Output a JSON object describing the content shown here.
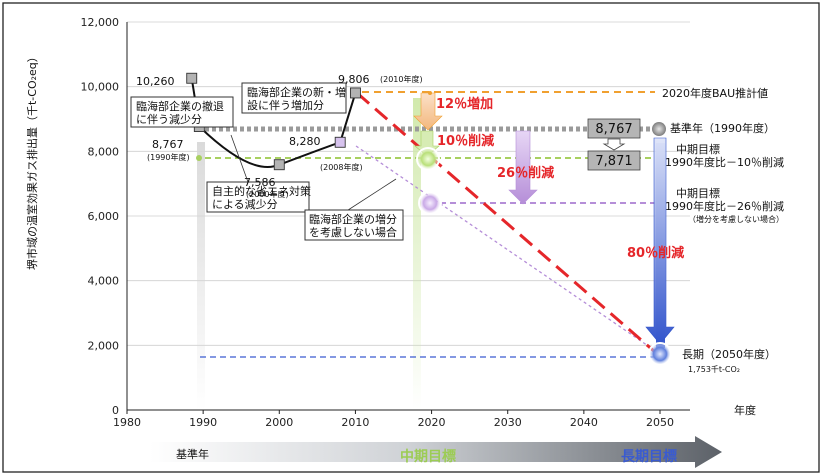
{
  "chart_data": {
    "type": "line",
    "ylabel": "堺市域の温室効果ガス排出量（千t-CO₂eq）",
    "xlabel": "年度",
    "xlim": [
      1980,
      2050
    ],
    "ylim": [
      0,
      12000
    ],
    "xticks": [
      "1980",
      "1990",
      "2000",
      "2010",
      "2020",
      "2030",
      "2040",
      "2050"
    ],
    "yticks": [
      "0",
      "2,000",
      "4,000",
      "6,000",
      "8,000",
      "10,000",
      "12,000"
    ],
    "series": [
      {
        "x": [
          1988.5,
          1989.5,
          2000,
          2008,
          2010
        ],
        "y": [
          10260,
          8767,
          7586,
          8280,
          9806
        ]
      }
    ],
    "point_labels": [
      {
        "text": "10,260",
        "x": 1988.5,
        "y": 10260
      },
      {
        "text": "8,767",
        "x": 1989.5,
        "y": 8767
      },
      {
        "text": "(1990年度)",
        "x": 1989.5,
        "y": 8767
      },
      {
        "text": "7,586",
        "x": 2000,
        "y": 7586
      },
      {
        "text": "(2000年度)",
        "x": 2000,
        "y": 7586
      },
      {
        "text": "8,280",
        "x": 2008,
        "y": 8280
      },
      {
        "text": "(2008年度)",
        "x": 2008,
        "y": 8280
      },
      {
        "text": "9,806",
        "x": 2010,
        "y": 9806
      },
      {
        "text": "(2010年度)",
        "x": 2010,
        "y": 9806
      }
    ],
    "reference_lines": [
      {
        "y": 9806,
        "label": "2020年度BAU推計値",
        "color": "#f0a030"
      },
      {
        "y": 8767,
        "label": "基準年（1990年度）",
        "color": "#999999"
      },
      {
        "y": 7871,
        "label_lines": [
          "中期目標",
          "1990年度比－10％削減"
        ],
        "color": "#a8d060"
      },
      {
        "y": 6400,
        "label_lines": [
          "中期目標",
          "1990年度比－26％削減"
        ],
        "note": "（増分を考慮しない場合）",
        "color": "#b58ed8"
      },
      {
        "y": 1753,
        "label_lines": [
          "長期（2050年度）",
          "1,753千t-CO₂"
        ],
        "color": "#3a5bd0"
      }
    ],
    "milestones": [
      {
        "x": 2020,
        "y": 7871
      },
      {
        "x": 2020,
        "y": 6400
      },
      {
        "x": 2050,
        "y": 1753
      }
    ],
    "annotations": [
      {
        "text": "12％増加",
        "color": "#e5262a"
      },
      {
        "text": "10％削減",
        "color": "#e5262a"
      },
      {
        "text": "26％削減",
        "color": "#e5262a"
      },
      {
        "text": "80％削減",
        "color": "#e5262a"
      }
    ],
    "callouts": [
      {
        "lines": [
          "臨海部企業の撤退",
          "に伴う減少分"
        ]
      },
      {
        "lines": [
          "臨海部企業の新・増",
          "設に伴う増加分"
        ]
      },
      {
        "lines": [
          "自主的な省エネ対策",
          "による減少分"
        ]
      },
      {
        "lines": [
          "臨海部企業の増分",
          "を考慮しない場合"
        ]
      }
    ],
    "value_boxes": [
      "8,767",
      "7,871"
    ],
    "timeline": [
      "基準年",
      "中期目標",
      "長期目標"
    ],
    "grid": true,
    "grid_axis": "y"
  }
}
